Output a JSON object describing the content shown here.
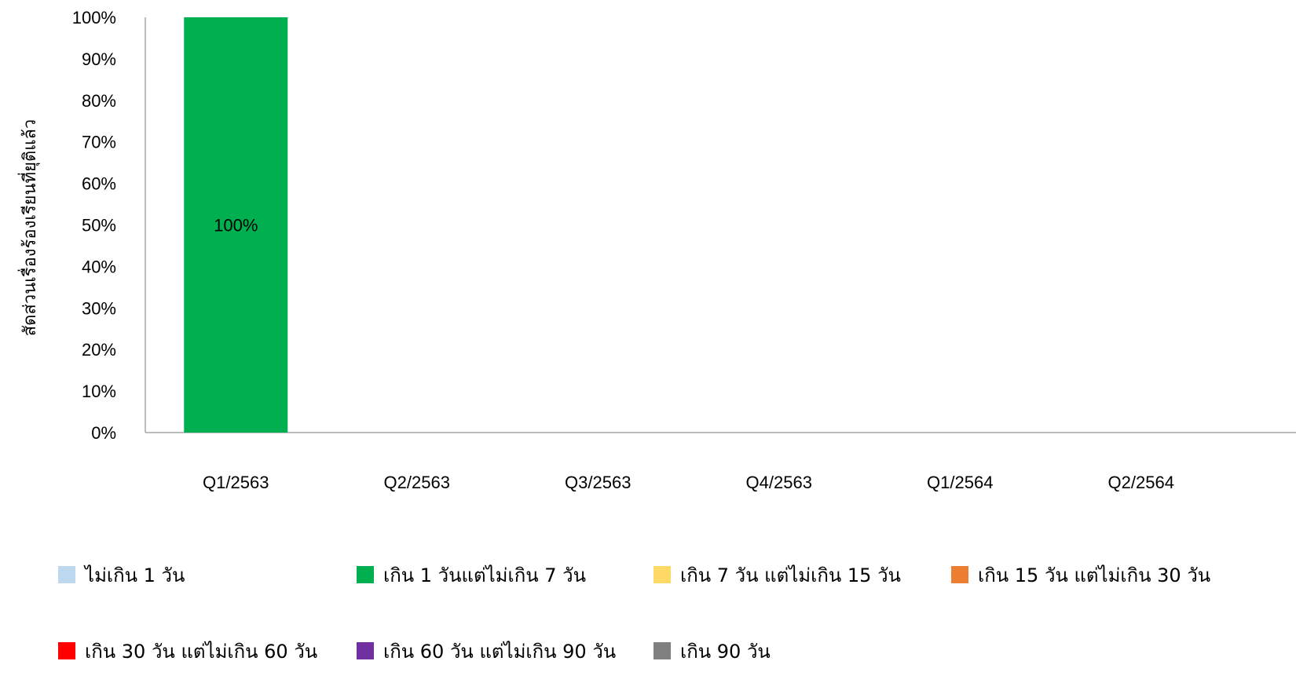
{
  "chart_data": {
    "type": "bar",
    "stacked": true,
    "categories": [
      "Q1/2563",
      "Q2/2563",
      "Q3/2563",
      "Q4/2563",
      "Q1/2564",
      "Q2/2564"
    ],
    "series": [
      {
        "name": "ไม่เกิน 1 วัน",
        "color": "#BDD7EE",
        "values": [
          0,
          0,
          0,
          0,
          0,
          0
        ]
      },
      {
        "name": "เกิน 1 วันแต่ไม่เกิน 7 วัน",
        "color": "#00B050",
        "values": [
          100,
          0,
          0,
          0,
          0,
          0
        ]
      },
      {
        "name": "เกิน 7 วัน แต่ไม่เกิน 15 วัน",
        "color": "#FFD966",
        "values": [
          0,
          0,
          0,
          0,
          0,
          0
        ]
      },
      {
        "name": "เกิน 15 วัน แต่ไม่เกิน 30 วัน",
        "color": "#ED7D31",
        "values": [
          0,
          0,
          0,
          0,
          0,
          0
        ]
      },
      {
        "name": "เกิน 30 วัน แต่ไม่เกิน 60 วัน",
        "color": "#FF0000",
        "values": [
          0,
          0,
          0,
          0,
          0,
          0
        ]
      },
      {
        "name": "เกิน 60 วัน แต่ไม่เกิน 90 วัน",
        "color": "#7030A0",
        "values": [
          0,
          0,
          0,
          0,
          0,
          0
        ]
      },
      {
        "name": "เกิน 90 วัน",
        "color": "#808080",
        "values": [
          0,
          0,
          0,
          0,
          0,
          0
        ]
      }
    ],
    "data_labels": [
      {
        "category": "Q1/2563",
        "text": "100%"
      }
    ],
    "ylabel": "สัดส่วนเรื่องร้องเรียนที่ยุติแล้ว",
    "xlabel": "",
    "ylim": [
      0,
      100
    ],
    "yticks": [
      "0%",
      "10%",
      "20%",
      "30%",
      "40%",
      "50%",
      "60%",
      "70%",
      "80%",
      "90%",
      "100%"
    ],
    "grid": false,
    "legend_position": "bottom"
  }
}
